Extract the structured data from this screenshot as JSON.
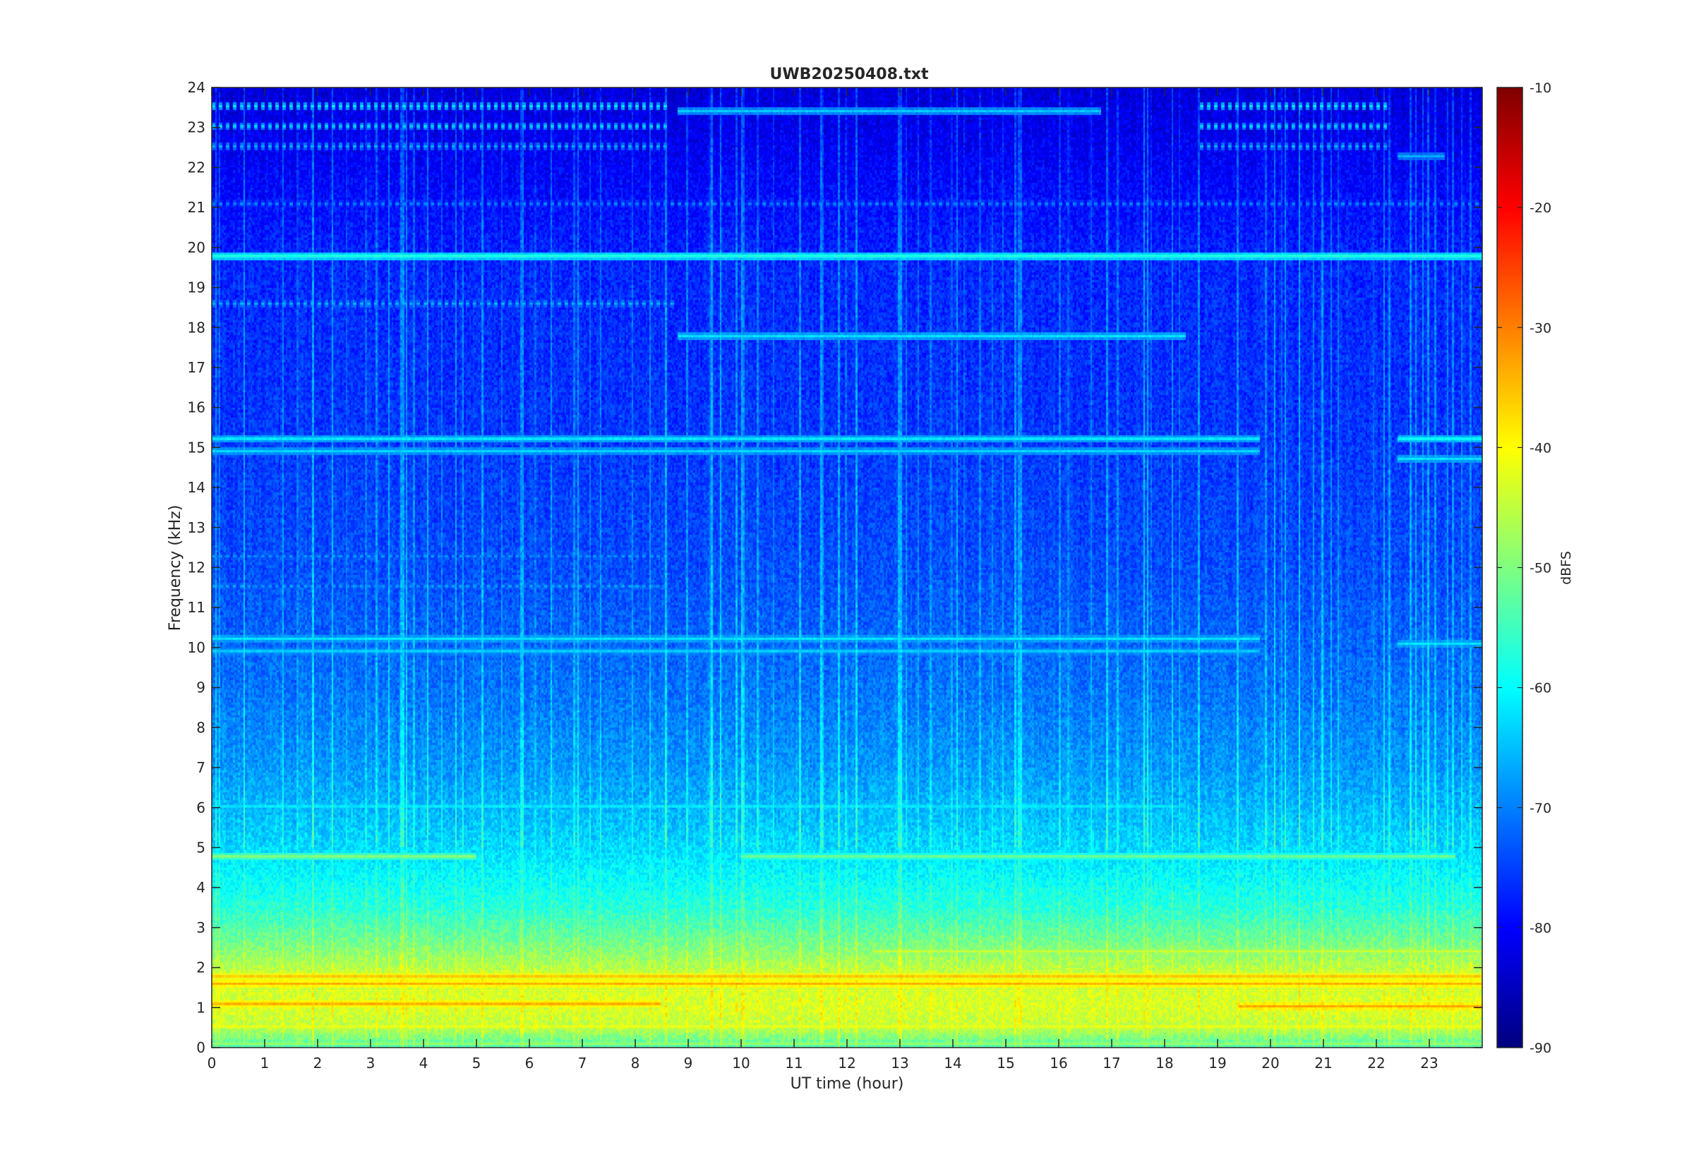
{
  "chart_data": {
    "type": "heatmap",
    "title": "UWB20250408.txt",
    "xlabel": "UT time (hour)",
    "ylabel": "Frequency (kHz)",
    "xlim": [
      0,
      24
    ],
    "ylim": [
      0,
      24
    ],
    "xticks": [
      0,
      1,
      2,
      3,
      4,
      5,
      6,
      7,
      8,
      9,
      10,
      11,
      12,
      13,
      14,
      15,
      16,
      17,
      18,
      19,
      20,
      21,
      22,
      23
    ],
    "yticks": [
      0,
      1,
      2,
      3,
      4,
      5,
      6,
      7,
      8,
      9,
      10,
      11,
      12,
      13,
      14,
      15,
      16,
      17,
      18,
      19,
      20,
      21,
      22,
      23,
      24
    ],
    "colormap": "jet",
    "colorbar": {
      "label": "dBFS",
      "clim": [
        -90,
        -10
      ],
      "ticks": [
        -90,
        -80,
        -70,
        -60,
        -50,
        -40,
        -30,
        -20,
        -10
      ]
    },
    "background_profile_dbfs": [
      {
        "freq_khz": 0.0,
        "level": -55
      },
      {
        "freq_khz": 0.5,
        "level": -45
      },
      {
        "freq_khz": 1.0,
        "level": -43
      },
      {
        "freq_khz": 1.8,
        "level": -44
      },
      {
        "freq_khz": 2.5,
        "level": -50
      },
      {
        "freq_khz": 3.5,
        "level": -57
      },
      {
        "freq_khz": 5.0,
        "level": -63
      },
      {
        "freq_khz": 7.0,
        "level": -68
      },
      {
        "freq_khz": 9.0,
        "level": -71
      },
      {
        "freq_khz": 12.0,
        "level": -74
      },
      {
        "freq_khz": 16.0,
        "level": -76
      },
      {
        "freq_khz": 19.5,
        "level": -77
      },
      {
        "freq_khz": 21.0,
        "level": -79
      },
      {
        "freq_khz": 24.0,
        "level": -83
      }
    ],
    "bands": [
      {
        "freq_khz": 19.8,
        "t_start": 0,
        "t_end": 24,
        "level": -58
      },
      {
        "freq_khz": 17.8,
        "t_start": 8.8,
        "t_end": 18.4,
        "level": -62
      },
      {
        "freq_khz": 23.4,
        "t_start": 8.8,
        "t_end": 16.8,
        "level": -64
      },
      {
        "freq_khz": 22.3,
        "t_start": 22.4,
        "t_end": 23.3,
        "level": -66
      },
      {
        "freq_khz": 15.2,
        "t_start": 0,
        "t_end": 19.8,
        "level": -62
      },
      {
        "freq_khz": 14.9,
        "t_start": 0,
        "t_end": 19.8,
        "level": -63
      },
      {
        "freq_khz": 15.2,
        "t_start": 22.4,
        "t_end": 24,
        "level": -60
      },
      {
        "freq_khz": 14.7,
        "t_start": 22.4,
        "t_end": 24,
        "level": -62
      },
      {
        "freq_khz": 10.2,
        "t_start": 0,
        "t_end": 19.8,
        "level": -62
      },
      {
        "freq_khz": 9.9,
        "t_start": 0,
        "t_end": 19.8,
        "level": -64
      },
      {
        "freq_khz": 10.1,
        "t_start": 22.4,
        "t_end": 24,
        "level": -62
      },
      {
        "freq_khz": 6.0,
        "t_start": 0,
        "t_end": 18.4,
        "level": -62
      },
      {
        "freq_khz": 4.8,
        "t_start": 0,
        "t_end": 5.0,
        "level": -50
      },
      {
        "freq_khz": 4.8,
        "t_start": 10.0,
        "t_end": 23.5,
        "level": -52
      },
      {
        "freq_khz": 2.4,
        "t_start": 12.5,
        "t_end": 24,
        "level": -44
      },
      {
        "freq_khz": 1.8,
        "t_start": 0,
        "t_end": 24,
        "level": -36
      },
      {
        "freq_khz": 1.6,
        "t_start": 0,
        "t_end": 24,
        "level": -34
      },
      {
        "freq_khz": 1.1,
        "t_start": 0,
        "t_end": 8.5,
        "level": -34
      },
      {
        "freq_khz": 1.05,
        "t_start": 19.4,
        "t_end": 24,
        "level": -33
      },
      {
        "freq_khz": 0.5,
        "t_start": 0,
        "t_end": 24,
        "level": -42
      },
      {
        "freq_khz": 0.1,
        "t_start": 0,
        "t_end": 24,
        "level": -48
      }
    ],
    "dotted_bands": [
      {
        "freq_khz": 23.5,
        "t_start": 0,
        "t_end": 8.6,
        "level": -62
      },
      {
        "freq_khz": 23.0,
        "t_start": 0,
        "t_end": 8.6,
        "level": -64
      },
      {
        "freq_khz": 22.5,
        "t_start": 0,
        "t_end": 8.6,
        "level": -66
      },
      {
        "freq_khz": 23.5,
        "t_start": 18.6,
        "t_end": 22.2,
        "level": -62
      },
      {
        "freq_khz": 23.0,
        "t_start": 18.6,
        "t_end": 22.2,
        "level": -64
      },
      {
        "freq_khz": 22.5,
        "t_start": 18.6,
        "t_end": 22.2,
        "level": -66
      },
      {
        "freq_khz": 21.1,
        "t_start": 0,
        "t_end": 24,
        "level": -70
      },
      {
        "freq_khz": 18.6,
        "t_start": 0,
        "t_end": 8.8,
        "level": -66
      },
      {
        "freq_khz": 12.3,
        "t_start": 0,
        "t_end": 8.6,
        "level": -68
      },
      {
        "freq_khz": 11.5,
        "t_start": 0,
        "t_end": 8.6,
        "level": -68
      }
    ]
  }
}
